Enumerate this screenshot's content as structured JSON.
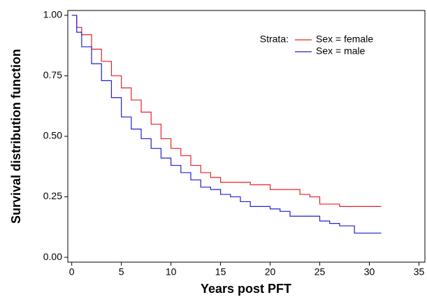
{
  "chart_data": {
    "type": "step",
    "x_label": "Years post PFT",
    "y_label": "Survival distribution function",
    "legend_title": "Strata:",
    "legend": "upper right",
    "xlim": [
      -0.4,
      35.6
    ],
    "ylim": [
      -0.02,
      1.02
    ],
    "xticks": [
      0,
      5,
      10,
      15,
      20,
      25,
      30,
      35
    ],
    "yticks": [
      {
        "value": 0,
        "label": "0.00"
      },
      {
        "value": 0.25,
        "label": "0.25"
      },
      {
        "value": 0.5,
        "label": "0.50"
      },
      {
        "value": 0.75,
        "label": "0.75"
      },
      {
        "value": 1,
        "label": "1.00"
      }
    ],
    "series": [
      {
        "name": "Sex = female",
        "color": "#e8202a",
        "x": [
          0,
          0.5,
          1,
          2,
          3,
          4,
          5,
          6,
          7,
          8,
          9,
          10,
          11,
          12,
          13,
          14,
          15,
          18,
          20,
          23,
          24,
          25,
          27,
          31.2
        ],
        "values": [
          1,
          0.95,
          0.92,
          0.86,
          0.81,
          0.75,
          0.7,
          0.65,
          0.6,
          0.55,
          0.49,
          0.45,
          0.42,
          0.38,
          0.35,
          0.33,
          0.31,
          0.3,
          0.28,
          0.26,
          0.25,
          0.22,
          0.21,
          0.21
        ]
      },
      {
        "name": "Sex = male",
        "color": "#2020d0",
        "x": [
          0,
          0.5,
          1,
          2,
          3,
          4,
          5,
          6,
          7,
          8,
          9,
          10,
          11,
          12,
          13,
          14,
          15,
          16,
          17,
          18,
          20,
          21,
          22,
          25,
          26,
          27,
          28.5,
          31.2
        ],
        "values": [
          1,
          0.93,
          0.87,
          0.8,
          0.73,
          0.66,
          0.58,
          0.53,
          0.49,
          0.45,
          0.41,
          0.38,
          0.35,
          0.32,
          0.29,
          0.28,
          0.26,
          0.25,
          0.23,
          0.21,
          0.2,
          0.19,
          0.17,
          0.15,
          0.14,
          0.13,
          0.1,
          0.1
        ]
      }
    ]
  }
}
